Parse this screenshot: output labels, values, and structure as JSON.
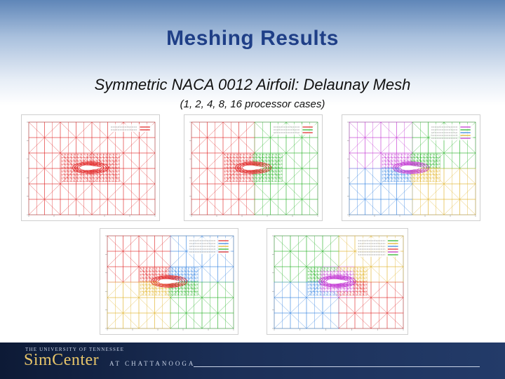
{
  "slide": {
    "title": "Meshing Results",
    "subtitle": "Symmetric NACA 0012 Airfoil: Delaunay Mesh",
    "caption": "(1, 2, 4, 8, 16 processor cases)"
  },
  "footer": {
    "university": "THE UNIVERSITY OF TENNESSEE",
    "brand": "SimCenter",
    "campus": "AT CHATTANOOGA"
  },
  "colors": {
    "title": "#1f3f87",
    "proc_1": "#e02020",
    "proc_2": "#20b020",
    "proc_4": "#c030d0",
    "proc_8": "#3080e0",
    "proc_16": "#e0b020"
  },
  "meshes": [
    {
      "processors": 1,
      "colors": [
        "#e02020"
      ],
      "has_legend": true
    },
    {
      "processors": 2,
      "colors": [
        "#e02020",
        "#20b020"
      ],
      "has_legend": true
    },
    {
      "processors": 4,
      "colors": [
        "#c030d0",
        "#20b020",
        "#3080e0",
        "#e0b020"
      ],
      "has_legend": true
    },
    {
      "processors": 8,
      "colors": [
        "#e02020",
        "#3080e0",
        "#e0b020",
        "#20b020"
      ],
      "has_legend": true
    },
    {
      "processors": 16,
      "colors": [
        "#20b020",
        "#e0b020",
        "#3080e0",
        "#e02020",
        "#c030d0"
      ],
      "has_legend": true
    }
  ]
}
